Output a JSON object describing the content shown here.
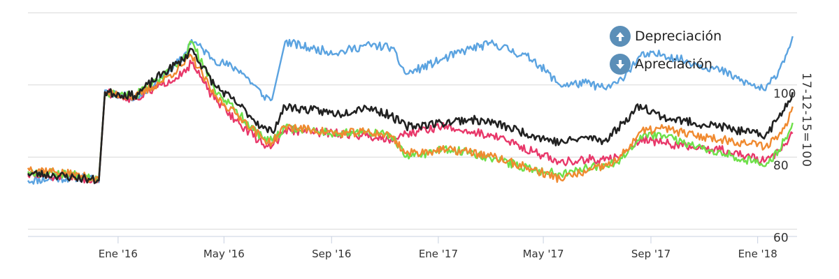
{
  "chart_data": {
    "type": "line",
    "ylabel": "17-12-15=100",
    "ylim": [
      58,
      122
    ],
    "y_ticks": [
      "60",
      "80",
      "100"
    ],
    "x_ticks": [
      "Ene '16",
      "May '16",
      "Sep '16",
      "Ene '17",
      "May '17",
      "Sep '17",
      "Ene '18"
    ],
    "x_range": [
      "2015-09-20",
      "2018-02-15"
    ],
    "grid": true,
    "legend_position": "top-right",
    "colors": {
      "blue": "#5ba3e0",
      "black": "#222222",
      "orange": "#f08a30",
      "pink": "#e8386a",
      "green": "#6ee04a"
    },
    "series": [
      {
        "color": "blue",
        "x": [
          "2015-09-20",
          "2015-10-20",
          "2015-11-25",
          "2015-12-10",
          "2015-12-17",
          "2016-01-20",
          "2016-02-20",
          "2016-03-15",
          "2016-03-25",
          "2016-04-20",
          "2016-05-20",
          "2016-06-15",
          "2016-06-25",
          "2016-07-10",
          "2016-08-10",
          "2016-09-10",
          "2016-10-10",
          "2016-11-08",
          "2016-11-25",
          "2017-01-05",
          "2017-02-05",
          "2017-03-05",
          "2017-04-20",
          "2017-05-20",
          "2017-06-20",
          "2017-07-10",
          "2017-07-25",
          "2017-08-20",
          "2017-09-15",
          "2017-10-20",
          "2017-11-20",
          "2017-12-15",
          "2018-01-10",
          "2018-01-25",
          "2018-02-05",
          "2018-02-10"
        ],
        "y": [
          73.5,
          74.0,
          74.5,
          73.0,
          98.5,
          96.0,
          102.0,
          107.5,
          112.5,
          107.0,
          104.0,
          97.0,
          96.0,
          112.0,
          110.0,
          109.0,
          111.0,
          110.5,
          103.0,
          107.0,
          110.0,
          111.5,
          107.0,
          100.0,
          100.5,
          99.0,
          100.5,
          108.0,
          108.5,
          106.0,
          104.0,
          101.0,
          98.5,
          104.0,
          110.0,
          113.5
        ]
      },
      {
        "color": "black",
        "x": [
          "2015-09-20",
          "2015-10-20",
          "2015-11-25",
          "2015-12-10",
          "2015-12-17",
          "2016-01-20",
          "2016-02-20",
          "2016-03-15",
          "2016-03-25",
          "2016-04-20",
          "2016-05-20",
          "2016-06-15",
          "2016-06-25",
          "2016-07-10",
          "2016-08-10",
          "2016-09-10",
          "2016-10-10",
          "2016-11-08",
          "2016-11-25",
          "2017-01-05",
          "2017-02-05",
          "2017-03-05",
          "2017-04-20",
          "2017-05-20",
          "2017-06-20",
          "2017-07-10",
          "2017-07-25",
          "2017-08-20",
          "2017-09-15",
          "2017-10-20",
          "2017-11-20",
          "2017-12-15",
          "2018-01-10",
          "2018-01-25",
          "2018-02-05",
          "2018-02-10"
        ],
        "y": [
          75.5,
          75.0,
          74.0,
          73.5,
          98.0,
          97.0,
          103.0,
          107.0,
          110.0,
          100.0,
          94.0,
          88.0,
          87.0,
          94.0,
          93.0,
          92.0,
          94.0,
          91.5,
          88.5,
          89.5,
          90.5,
          89.5,
          86.0,
          84.0,
          85.5,
          84.5,
          88.0,
          94.5,
          91.0,
          89.5,
          88.5,
          87.0,
          86.0,
          91.0,
          95.5,
          98.0
        ]
      },
      {
        "color": "orange",
        "x": [
          "2015-09-20",
          "2015-10-20",
          "2015-11-25",
          "2015-12-10",
          "2015-12-17",
          "2016-01-20",
          "2016-02-20",
          "2016-03-15",
          "2016-03-25",
          "2016-04-20",
          "2016-05-20",
          "2016-06-15",
          "2016-06-25",
          "2016-07-10",
          "2016-08-10",
          "2016-09-10",
          "2016-10-10",
          "2016-11-08",
          "2016-11-25",
          "2017-01-05",
          "2017-02-05",
          "2017-03-05",
          "2017-04-20",
          "2017-05-20",
          "2017-06-20",
          "2017-07-10",
          "2017-07-25",
          "2017-08-20",
          "2017-09-15",
          "2017-10-20",
          "2017-11-20",
          "2017-12-15",
          "2018-01-10",
          "2018-01-25",
          "2018-02-05",
          "2018-02-10"
        ],
        "y": [
          77.0,
          76.0,
          74.5,
          73.5,
          98.0,
          96.5,
          101.0,
          105.5,
          108.0,
          97.0,
          91.0,
          85.0,
          84.0,
          88.5,
          87.5,
          86.5,
          87.0,
          86.0,
          81.0,
          82.0,
          81.5,
          80.0,
          76.5,
          74.0,
          76.0,
          77.5,
          79.0,
          87.0,
          88.0,
          86.0,
          85.0,
          84.0,
          83.0,
          86.0,
          90.0,
          94.0
        ]
      },
      {
        "color": "pink",
        "x": [
          "2015-09-20",
          "2015-10-20",
          "2015-11-25",
          "2015-12-10",
          "2015-12-17",
          "2016-01-20",
          "2016-02-20",
          "2016-03-15",
          "2016-03-25",
          "2016-04-20",
          "2016-05-20",
          "2016-06-15",
          "2016-06-25",
          "2016-07-10",
          "2016-08-10",
          "2016-09-10",
          "2016-10-10",
          "2016-11-08",
          "2016-11-25",
          "2017-01-05",
          "2017-02-05",
          "2017-03-05",
          "2017-04-20",
          "2017-05-20",
          "2017-06-20",
          "2017-07-10",
          "2017-07-25",
          "2017-08-20",
          "2017-09-15",
          "2017-10-20",
          "2017-11-20",
          "2017-12-15",
          "2018-01-10",
          "2018-01-25",
          "2018-02-05",
          "2018-02-10"
        ],
        "y": [
          75.0,
          74.5,
          74.0,
          73.5,
          98.0,
          96.0,
          100.0,
          103.5,
          106.0,
          96.0,
          89.0,
          83.5,
          83.0,
          87.5,
          87.0,
          86.5,
          86.0,
          85.0,
          86.5,
          88.5,
          87.0,
          86.0,
          81.5,
          78.5,
          79.5,
          79.0,
          80.0,
          85.0,
          84.0,
          82.5,
          82.0,
          80.5,
          79.0,
          81.5,
          84.5,
          86.5
        ]
      },
      {
        "color": "green",
        "x": [
          "2015-09-20",
          "2015-10-20",
          "2015-11-25",
          "2015-12-10",
          "2015-12-17",
          "2016-01-20",
          "2016-02-20",
          "2016-03-15",
          "2016-03-25",
          "2016-04-20",
          "2016-05-20",
          "2016-06-15",
          "2016-06-25",
          "2016-07-10",
          "2016-08-10",
          "2016-09-10",
          "2016-10-10",
          "2016-11-08",
          "2016-11-25",
          "2017-01-05",
          "2017-02-05",
          "2017-03-05",
          "2017-04-20",
          "2017-05-20",
          "2017-06-20",
          "2017-07-10",
          "2017-07-25",
          "2017-08-20",
          "2017-09-15",
          "2017-10-20",
          "2017-11-20",
          "2017-12-15",
          "2018-01-10",
          "2018-01-25",
          "2018-02-05",
          "2018-02-10"
        ],
        "y": [
          76.0,
          75.5,
          75.0,
          74.0,
          98.0,
          97.0,
          102.0,
          107.0,
          112.0,
          99.0,
          91.5,
          85.0,
          84.5,
          88.0,
          87.5,
          86.5,
          87.0,
          86.0,
          80.0,
          82.0,
          81.5,
          79.5,
          76.5,
          75.5,
          77.0,
          78.0,
          78.5,
          86.0,
          86.0,
          83.0,
          81.5,
          79.5,
          77.5,
          82.0,
          86.5,
          89.5
        ]
      }
    ]
  },
  "legend": {
    "items": [
      {
        "label": "Depreciación",
        "icon": "arrow-up-circle-icon",
        "color": "#5b8fb8"
      },
      {
        "label": "Apreciación",
        "icon": "arrow-down-circle-icon",
        "color": "#5b8fb8"
      }
    ]
  }
}
